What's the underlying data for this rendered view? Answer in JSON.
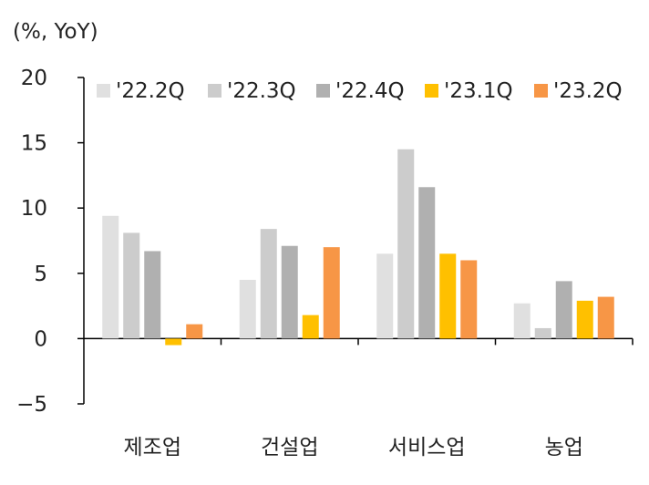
{
  "chart_data": {
    "type": "bar",
    "title": "",
    "unit_label": "(%, YoY)",
    "xlabel": "",
    "ylabel": "",
    "ylim": [
      -5,
      20
    ],
    "yticks": [
      20,
      15,
      10,
      5,
      0,
      -5
    ],
    "ytick_labels": [
      "20",
      "15",
      "10",
      "5",
      "0",
      "−5"
    ],
    "categories": [
      "제조업",
      "건설업",
      "서비스업",
      "농업"
    ],
    "legend_position": "top",
    "grid": false,
    "series": [
      {
        "name": "'22.2Q",
        "color": "#e0e0e0",
        "values": [
          9.4,
          4.5,
          6.5,
          2.7
        ]
      },
      {
        "name": "'22.3Q",
        "color": "#cccccc",
        "values": [
          8.1,
          8.4,
          14.5,
          0.8
        ]
      },
      {
        "name": "'22.4Q",
        "color": "#b0b0b0",
        "values": [
          6.7,
          7.1,
          11.6,
          4.4
        ]
      },
      {
        "name": "'23.1Q",
        "color": "#ffc000",
        "values": [
          -0.5,
          1.8,
          6.5,
          2.9
        ]
      },
      {
        "name": "'23.2Q",
        "color": "#f79646",
        "values": [
          1.1,
          7.0,
          6.0,
          3.2
        ]
      }
    ]
  }
}
